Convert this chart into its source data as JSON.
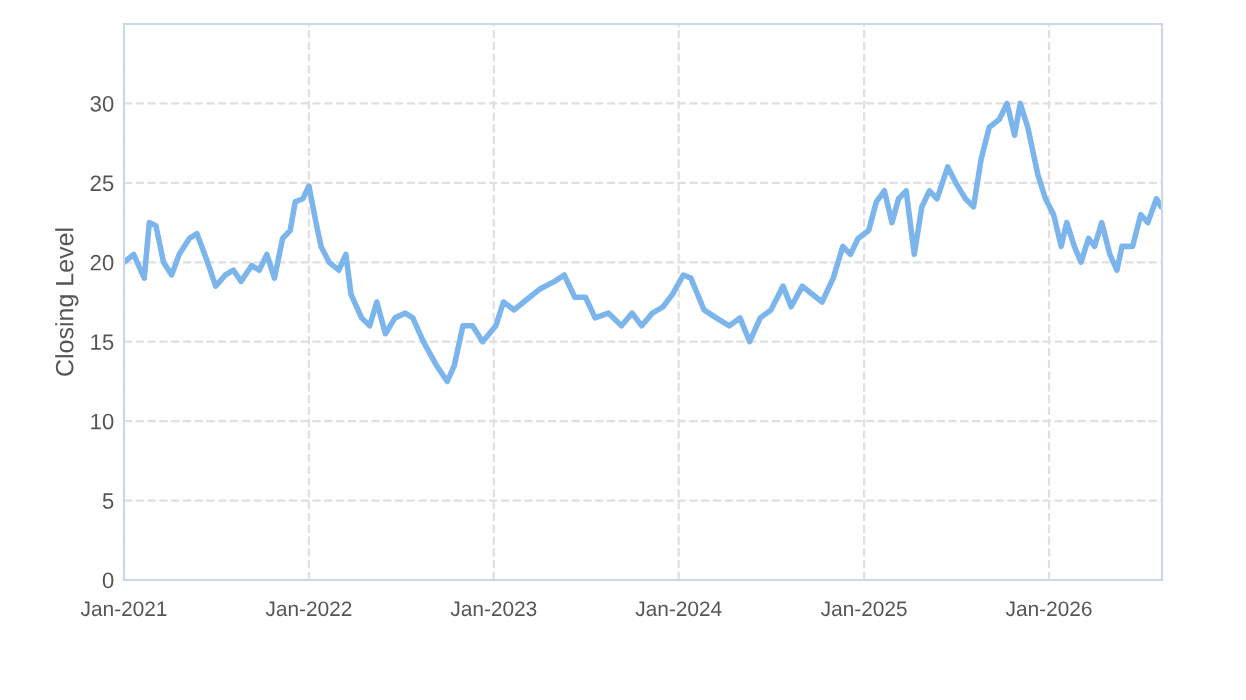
{
  "chart_data": {
    "type": "line",
    "ylabel": "Closing Level",
    "x": [
      "2021-01-01",
      "2021-01-20",
      "2021-02-10",
      "2021-02-20",
      "2021-03-05",
      "2021-03-20",
      "2021-04-05",
      "2021-04-20",
      "2021-05-10",
      "2021-05-25",
      "2021-06-15",
      "2021-07-01",
      "2021-07-20",
      "2021-08-05",
      "2021-08-20",
      "2021-09-10",
      "2021-09-25",
      "2021-10-10",
      "2021-10-25",
      "2021-11-10",
      "2021-11-25",
      "2021-12-05",
      "2021-12-20",
      "2022-01-01",
      "2022-01-15",
      "2022-01-25",
      "2022-02-10",
      "2022-03-01",
      "2022-03-15",
      "2022-03-25",
      "2022-04-15",
      "2022-05-01",
      "2022-05-15",
      "2022-06-01",
      "2022-06-20",
      "2022-07-10",
      "2022-07-25",
      "2022-08-15",
      "2022-09-10",
      "2022-10-01",
      "2022-10-15",
      "2022-11-01",
      "2022-11-20",
      "2022-12-10",
      "2023-01-05",
      "2023-01-20",
      "2023-02-10",
      "2023-03-01",
      "2023-04-01",
      "2023-05-01",
      "2023-05-20",
      "2023-06-10",
      "2023-07-01",
      "2023-07-20",
      "2023-08-15",
      "2023-09-10",
      "2023-10-01",
      "2023-10-20",
      "2023-11-10",
      "2023-12-01",
      "2023-12-20",
      "2024-01-10",
      "2024-01-25",
      "2024-02-20",
      "2024-03-15",
      "2024-04-10",
      "2024-05-01",
      "2024-05-20",
      "2024-06-10",
      "2024-07-01",
      "2024-07-25",
      "2024-08-10",
      "2024-09-01",
      "2024-09-20",
      "2024-10-10",
      "2024-11-01",
      "2024-11-20",
      "2024-12-05",
      "2024-12-20",
      "2025-01-10",
      "2025-01-25",
      "2025-02-10",
      "2025-02-25",
      "2025-03-10",
      "2025-03-25",
      "2025-04-10",
      "2025-04-25",
      "2025-05-10",
      "2025-05-25",
      "2025-06-15",
      "2025-07-01",
      "2025-07-20",
      "2025-08-05",
      "2025-08-20",
      "2025-09-05",
      "2025-09-25",
      "2025-10-10",
      "2025-10-25",
      "2025-11-05",
      "2025-11-20",
      "2025-12-10",
      "2025-12-25",
      "2026-01-10",
      "2026-01-25",
      "2026-02-05",
      "2026-02-20",
      "2026-03-05",
      "2026-03-20",
      "2026-04-01",
      "2026-04-15",
      "2026-05-01",
      "2026-05-15",
      "2026-05-25",
      "2026-06-15",
      "2026-07-01",
      "2026-07-15",
      "2026-08-01",
      "2026-08-10"
    ],
    "series": [
      {
        "color": "#7cb5ec",
        "values": [
          20.0,
          20.5,
          19.0,
          22.5,
          22.3,
          20.0,
          19.2,
          20.5,
          21.5,
          21.8,
          20.0,
          18.5,
          19.2,
          19.5,
          18.8,
          19.8,
          19.5,
          20.5,
          19.0,
          21.5,
          22.0,
          23.8,
          24.0,
          24.8,
          22.5,
          21.0,
          20.0,
          19.5,
          20.5,
          18.0,
          16.5,
          16.0,
          17.5,
          15.5,
          16.5,
          16.8,
          16.5,
          15.0,
          13.5,
          12.5,
          13.5,
          16.0,
          16.0,
          15.0,
          16.0,
          17.5,
          17.0,
          17.5,
          18.3,
          18.8,
          19.2,
          17.8,
          17.8,
          16.5,
          16.8,
          16.0,
          16.8,
          16.0,
          16.8,
          17.2,
          18.0,
          19.2,
          19.0,
          17.0,
          16.5,
          16.0,
          16.5,
          15.0,
          16.5,
          17.0,
          18.5,
          17.2,
          18.5,
          18.0,
          17.5,
          19.0,
          21.0,
          20.5,
          21.5,
          22.0,
          23.8,
          24.5,
          22.5,
          24.0,
          24.5,
          20.5,
          23.5,
          24.5,
          24.0,
          26.0,
          25.0,
          24.0,
          23.5,
          26.5,
          28.5,
          29.0,
          30.0,
          28.0,
          30.0,
          28.5,
          25.5,
          24.0,
          23.0,
          21.0,
          22.5,
          21.0,
          20.0,
          21.5,
          21.0,
          22.5,
          20.5,
          19.5,
          21.0,
          21.0,
          23.0,
          22.5,
          24.0,
          23.5
        ]
      }
    ],
    "xlim": [
      "2021-01-01",
      "2026-08-12"
    ],
    "xticks": [
      {
        "value": "2021-01-01",
        "label": "Jan-2021"
      },
      {
        "value": "2022-01-01",
        "label": "Jan-2022"
      },
      {
        "value": "2023-01-01",
        "label": "Jan-2023"
      },
      {
        "value": "2024-01-01",
        "label": "Jan-2024"
      },
      {
        "value": "2025-01-01",
        "label": "Jan-2025"
      },
      {
        "value": "2026-01-01",
        "label": "Jan-2026"
      }
    ],
    "ylim": [
      0,
      35
    ],
    "yticks": [
      0,
      5,
      10,
      15,
      20,
      25,
      30
    ],
    "grid": true,
    "line_style": "solid",
    "marker": "none"
  }
}
